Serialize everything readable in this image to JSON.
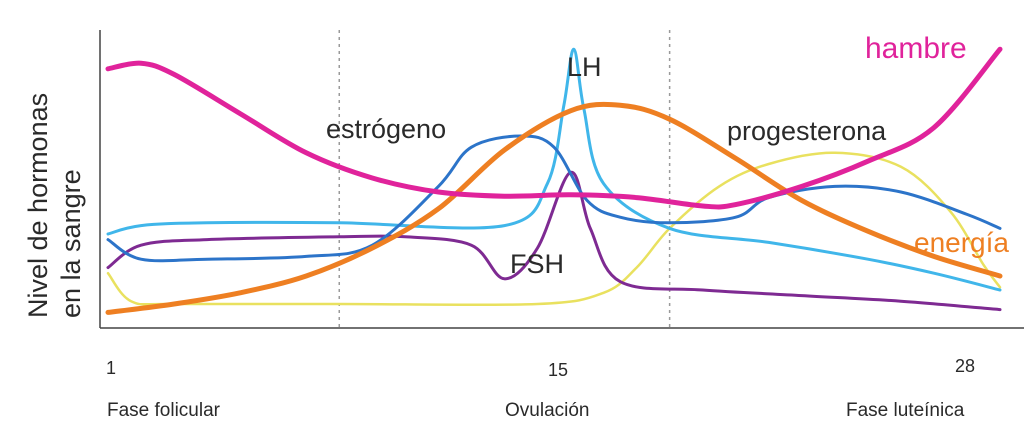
{
  "chart_data": {
    "type": "line",
    "title": "",
    "ylabel_lines": [
      "Nivel de hormonas",
      "en la sangre"
    ],
    "xlim": [
      1,
      28
    ],
    "ylim": [
      0,
      10
    ],
    "x_ticks": [
      {
        "value": 1,
        "label": "1"
      },
      {
        "value": 15,
        "label": "15"
      },
      {
        "value": 28,
        "label": "28"
      }
    ],
    "phases": [
      {
        "label": "Fase folicular",
        "at": 1
      },
      {
        "label": "Ovulación",
        "at": 15
      },
      {
        "label": "Fase luteínica",
        "at": 28
      }
    ],
    "phase_dividers": [
      8,
      18
    ],
    "grid": false,
    "series": [
      {
        "name": "hambre",
        "color": "#e0239b",
        "points": [
          [
            1,
            8.9
          ],
          [
            2,
            9.1
          ],
          [
            3,
            8.7
          ],
          [
            5,
            7.3
          ],
          [
            7,
            5.9
          ],
          [
            9,
            5.0
          ],
          [
            11,
            4.5
          ],
          [
            13,
            4.35
          ],
          [
            15,
            4.4
          ],
          [
            17,
            4.3
          ],
          [
            19,
            4.0
          ],
          [
            20,
            4.05
          ],
          [
            22,
            4.7
          ],
          [
            24,
            5.6
          ],
          [
            26,
            6.8
          ],
          [
            28,
            9.6
          ]
        ]
      },
      {
        "name": "energía",
        "color": "#ee7f22",
        "points": [
          [
            1,
            0.2
          ],
          [
            3,
            0.5
          ],
          [
            5,
            0.9
          ],
          [
            7,
            1.5
          ],
          [
            9,
            2.5
          ],
          [
            11,
            3.9
          ],
          [
            13,
            6.0
          ],
          [
            15,
            7.4
          ],
          [
            16.5,
            7.6
          ],
          [
            18,
            7.1
          ],
          [
            20,
            5.7
          ],
          [
            22,
            4.2
          ],
          [
            24,
            3.1
          ],
          [
            26,
            2.2
          ],
          [
            28,
            1.5
          ]
        ]
      },
      {
        "name": "estrógeno",
        "color": "#2c74c9",
        "points": [
          [
            1,
            2.8
          ],
          [
            2,
            2.1
          ],
          [
            4,
            2.1
          ],
          [
            7,
            2.2
          ],
          [
            9,
            2.6
          ],
          [
            11,
            4.7
          ],
          [
            12,
            6.1
          ],
          [
            13.5,
            6.5
          ],
          [
            14.5,
            6.1
          ],
          [
            15.5,
            4.2
          ],
          [
            16.5,
            3.6
          ],
          [
            18,
            3.4
          ],
          [
            20,
            3.6
          ],
          [
            21,
            4.3
          ],
          [
            23,
            4.7
          ],
          [
            25,
            4.5
          ],
          [
            27,
            3.7
          ],
          [
            28,
            3.2
          ]
        ]
      },
      {
        "name": "LH",
        "color": "#40b6ea",
        "points": [
          [
            1,
            3.0
          ],
          [
            2,
            3.3
          ],
          [
            4,
            3.4
          ],
          [
            8,
            3.4
          ],
          [
            13,
            3.3
          ],
          [
            14.3,
            4.8
          ],
          [
            14.8,
            7.6
          ],
          [
            15.1,
            9.6
          ],
          [
            15.4,
            7.5
          ],
          [
            16,
            4.8
          ],
          [
            18,
            3.2
          ],
          [
            21,
            2.7
          ],
          [
            24,
            2.1
          ],
          [
            26,
            1.6
          ],
          [
            28,
            1.0
          ]
        ]
      },
      {
        "name": "FSH",
        "color": "#7e2a92",
        "points": [
          [
            1,
            1.8
          ],
          [
            2,
            2.6
          ],
          [
            4,
            2.8
          ],
          [
            8,
            2.9
          ],
          [
            10,
            2.9
          ],
          [
            12,
            2.6
          ],
          [
            13,
            1.4
          ],
          [
            14,
            2.5
          ],
          [
            15,
            5.2
          ],
          [
            15.6,
            3.2
          ],
          [
            16.5,
            1.3
          ],
          [
            19,
            1.0
          ],
          [
            22,
            0.8
          ],
          [
            25,
            0.6
          ],
          [
            28,
            0.3
          ]
        ]
      },
      {
        "name": "progesterona",
        "color": "#e9e15f",
        "points": [
          [
            1,
            1.6
          ],
          [
            1.7,
            0.6
          ],
          [
            3,
            0.5
          ],
          [
            8,
            0.5
          ],
          [
            14,
            0.5
          ],
          [
            16,
            0.9
          ],
          [
            17,
            1.8
          ],
          [
            18,
            3.2
          ],
          [
            19.5,
            4.7
          ],
          [
            21,
            5.5
          ],
          [
            23,
            5.9
          ],
          [
            25,
            5.4
          ],
          [
            26.5,
            3.8
          ],
          [
            27.5,
            1.9
          ],
          [
            28,
            1.1
          ]
        ]
      }
    ],
    "series_labels": [
      {
        "text": "hambre",
        "series": "hambre"
      },
      {
        "text": "energía",
        "series": "energía"
      },
      {
        "text": "estrógeno",
        "series": "estrógeno"
      },
      {
        "text": "LH",
        "series": "LH"
      },
      {
        "text": "FSH",
        "series": "FSH"
      },
      {
        "text": "progesterona",
        "series": "progesterona"
      }
    ]
  }
}
